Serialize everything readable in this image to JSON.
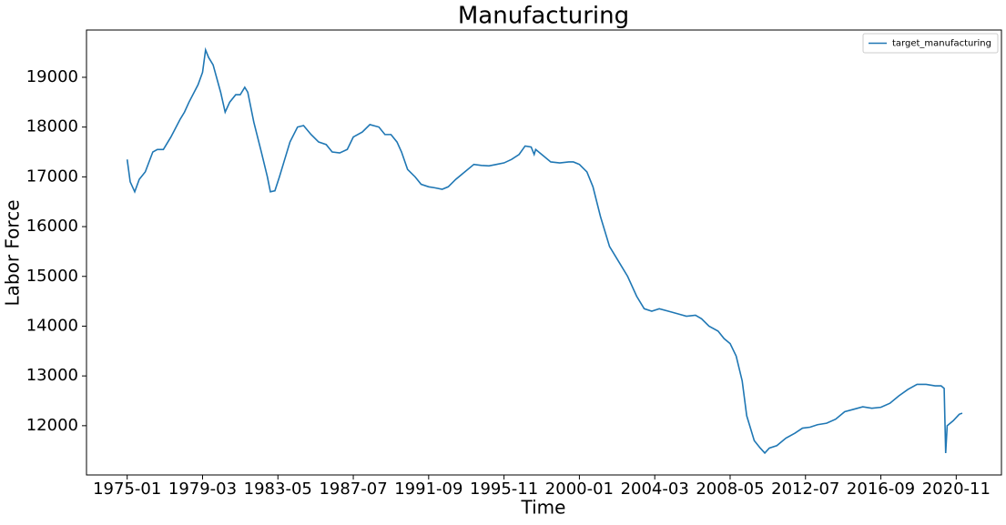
{
  "chart_data": {
    "type": "line",
    "title": "Manufacturing",
    "xlabel": "Time",
    "ylabel": "Labor Force",
    "legend": "upper right",
    "grid": false,
    "xlim": [
      "1972-10",
      "2023-05"
    ],
    "xticks": [
      "1975-01",
      "1979-03",
      "1983-05",
      "1987-07",
      "1991-09",
      "1995-11",
      "2000-01",
      "2004-03",
      "2008-05",
      "2012-07",
      "2016-09",
      "2020-11"
    ],
    "ylim": [
      11010,
      19950
    ],
    "yticks": [
      12000,
      13000,
      14000,
      15000,
      16000,
      17000,
      18000,
      19000
    ],
    "x": [
      "1975-01",
      "1975-03",
      "1975-06",
      "1975-09",
      "1976-01",
      "1976-06",
      "1976-09",
      "1977-01",
      "1977-03",
      "1977-06",
      "1977-12",
      "1978-03",
      "1978-06",
      "1978-12",
      "1979-03",
      "1979-05",
      "1979-07",
      "1979-10",
      "1980-03",
      "1980-06",
      "1980-09",
      "1981-01",
      "1981-04",
      "1981-07",
      "1981-09",
      "1982-01",
      "1982-06",
      "1982-10",
      "1982-12",
      "1983-03",
      "1983-06",
      "1983-09",
      "1984-01",
      "1984-06",
      "1984-10",
      "1985-03",
      "1985-08",
      "1986-01",
      "1986-05",
      "1986-10",
      "1987-03",
      "1987-07",
      "1988-01",
      "1988-06",
      "1988-12",
      "1989-04",
      "1989-08",
      "1989-12",
      "1990-03",
      "1990-07",
      "1990-12",
      "1991-04",
      "1991-09",
      "1992-01",
      "1992-06",
      "1992-10",
      "1993-03",
      "1993-09",
      "1994-03",
      "1994-08",
      "1995-01",
      "1995-06",
      "1995-11",
      "1996-04",
      "1996-09",
      "1997-01",
      "1997-05",
      "1997-07",
      "1997-08",
      "1997-12",
      "1998-06",
      "1998-12",
      "1999-06",
      "1999-09",
      "2000-01",
      "2000-06",
      "2000-10",
      "2001-03",
      "2001-09",
      "2002-03",
      "2002-09",
      "2003-03",
      "2003-08",
      "2004-01",
      "2004-06",
      "2004-12",
      "2005-06",
      "2005-12",
      "2006-06",
      "2006-10",
      "2007-03",
      "2007-09",
      "2008-01",
      "2008-05",
      "2008-09",
      "2009-01",
      "2009-04",
      "2009-09",
      "2010-01",
      "2010-04",
      "2010-07",
      "2010-12",
      "2011-06",
      "2011-12",
      "2012-05",
      "2012-10",
      "2013-03",
      "2013-09",
      "2014-03",
      "2014-09",
      "2015-03",
      "2015-09",
      "2016-03",
      "2016-09",
      "2017-03",
      "2017-09",
      "2018-03",
      "2018-09",
      "2019-03",
      "2019-09",
      "2020-01",
      "2020-03",
      "2020-04",
      "2020-05",
      "2020-09",
      "2021-01",
      "2021-03"
    ],
    "series": [
      {
        "name": "target_manufacturing",
        "color": "#1f77b4",
        "values": [
          17350,
          16900,
          16700,
          16950,
          17100,
          17500,
          17550,
          17550,
          17650,
          17800,
          18150,
          18300,
          18500,
          18850,
          19100,
          19550,
          19400,
          19250,
          18700,
          18300,
          18500,
          18650,
          18650,
          18800,
          18700,
          18100,
          17500,
          17000,
          16700,
          16720,
          17000,
          17300,
          17700,
          18000,
          18030,
          17850,
          17700,
          17650,
          17500,
          17480,
          17550,
          17800,
          17900,
          18050,
          18000,
          17850,
          17850,
          17700,
          17500,
          17150,
          17000,
          16850,
          16800,
          16780,
          16750,
          16800,
          16950,
          17100,
          17250,
          17230,
          17220,
          17250,
          17280,
          17350,
          17450,
          17620,
          17600,
          17450,
          17550,
          17450,
          17300,
          17280,
          17300,
          17300,
          17250,
          17100,
          16800,
          16200,
          15600,
          15300,
          15000,
          14600,
          14350,
          14300,
          14350,
          14300,
          14250,
          14200,
          14220,
          14150,
          14000,
          13900,
          13750,
          13650,
          13400,
          12900,
          12200,
          11700,
          11550,
          11450,
          11550,
          11600,
          11750,
          11850,
          11950,
          11970,
          12020,
          12050,
          12130,
          12280,
          12330,
          12380,
          12350,
          12370,
          12450,
          12600,
          12730,
          12830,
          12830,
          12800,
          12800,
          12750,
          11450,
          12000,
          12100,
          12230,
          12250
        ]
      }
    ]
  }
}
